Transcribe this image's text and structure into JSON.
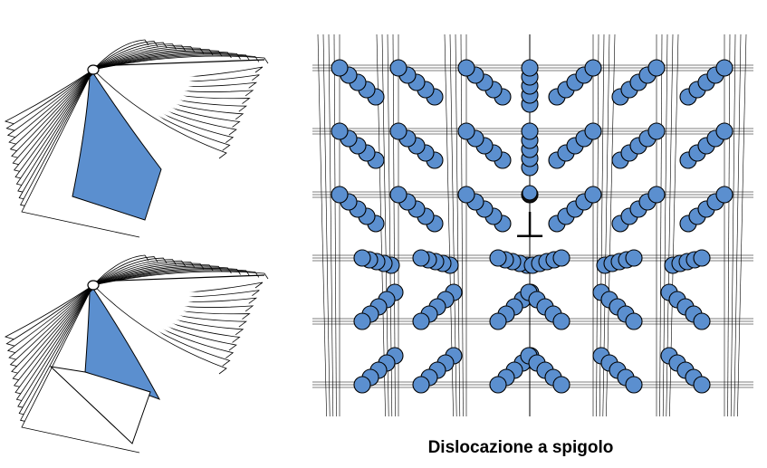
{
  "caption": "Dislocazione a spigolo",
  "symbol": "⊥",
  "colors": {
    "atom_fill": "#5b8fcf",
    "atom_dark": "#111111",
    "stroke": "#000000",
    "page_highlight": "#5b8fcf",
    "background": "#ffffff"
  }
}
